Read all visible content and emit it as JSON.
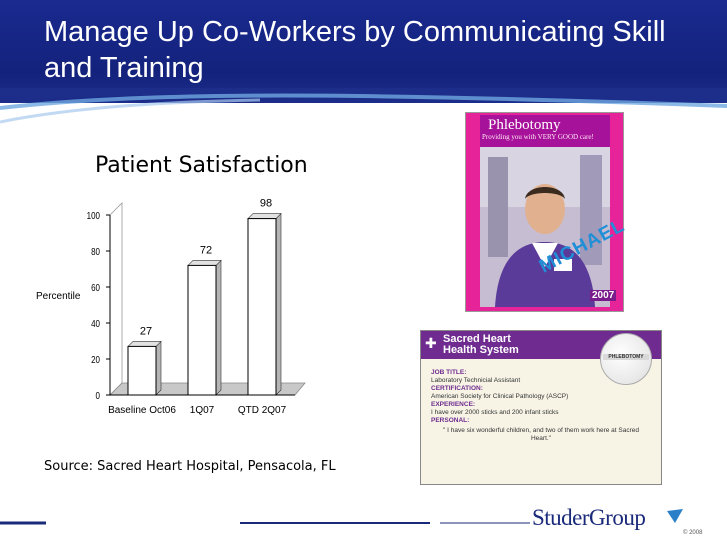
{
  "slide": {
    "title": "Manage Up Co-Workers by Communicating Skill and Training",
    "source": "Source: Sacred Heart Hospital, Pensacola, FL"
  },
  "chart_data": {
    "type": "bar",
    "title": "Patient Satisfaction",
    "ylabel": "Percentile",
    "xlabel": "",
    "categories": [
      "Baseline Oct06",
      "1Q07",
      "QTD 2Q07"
    ],
    "values": [
      27,
      72,
      98
    ],
    "data_labels": [
      "27",
      "72",
      "98"
    ],
    "ylim": [
      0,
      100
    ],
    "yticks": [
      "0",
      "20",
      "40",
      "60",
      "80",
      "100"
    ],
    "grid": false,
    "style": "3d"
  },
  "poster": {
    "title": "Phlebotomy",
    "subtitle": "Providing you with VERY GOOD care!",
    "name": "MICHAEL",
    "year": "2007"
  },
  "card": {
    "logo": [
      "Sacred Heart",
      "Health System"
    ],
    "ball_label": "PHLEBOTOMY",
    "job_title_label": "JOB TITLE:",
    "job_title": "Laboratory Technicial Assistant",
    "certification_label": "CERTIFICATION:",
    "certification": "American Society for Clinical Pathology (ASCP)",
    "experience_label": "EXPERIENCE:",
    "experience": "I have over 2000 sticks and 200 infant sticks",
    "personal_label": "PERSONAL:",
    "personal": "\" I have six wonderful children, and two of them work here at Sacred Heart.\""
  },
  "brand": {
    "name": "StuderGroup",
    "copyright": "© 2008"
  },
  "colors": {
    "title_bar": "#13227c",
    "bar_fill": "#ffffff",
    "poster_bg": "#e7239a",
    "card_header": "#6f2b8f"
  }
}
